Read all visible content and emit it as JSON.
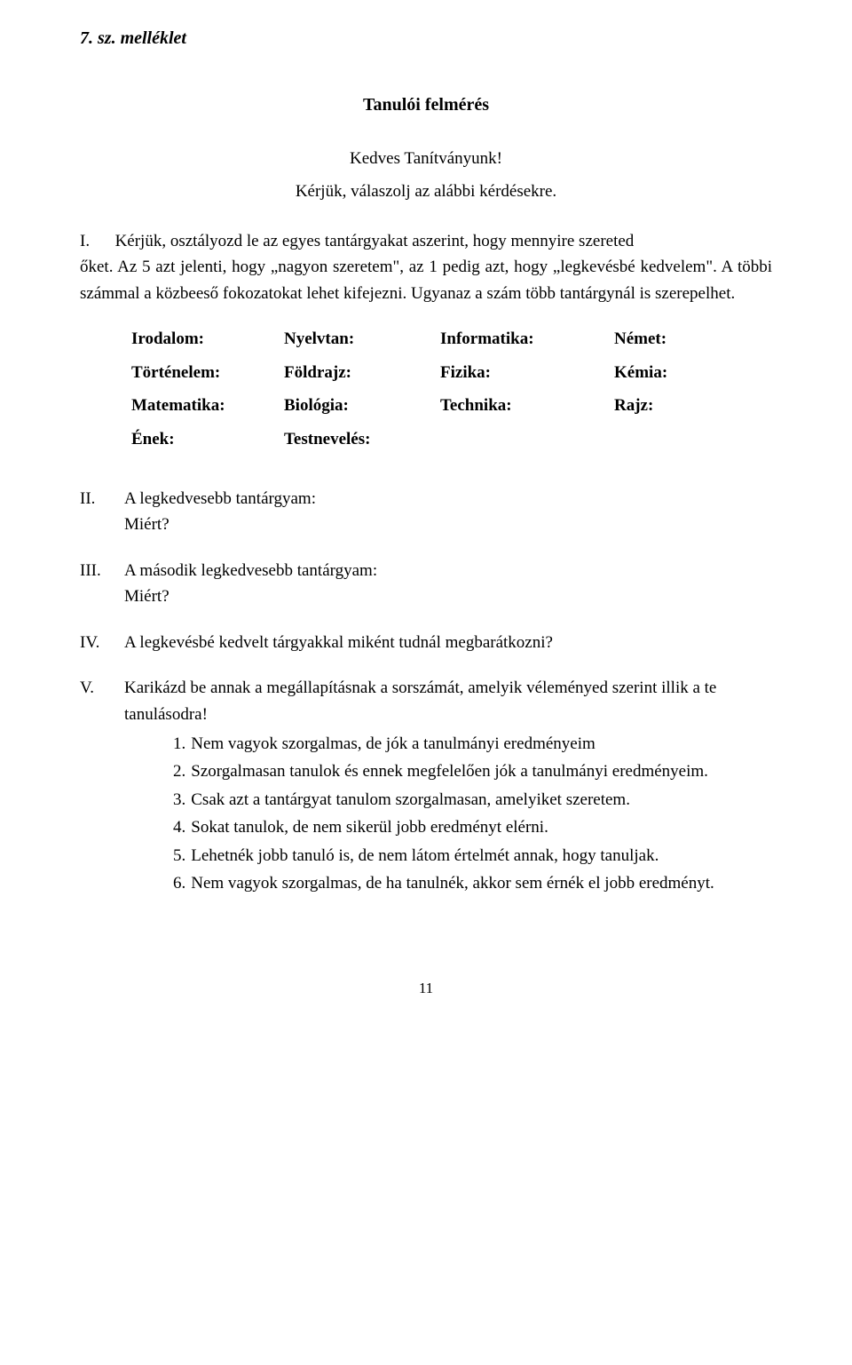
{
  "attachment_heading": "7. sz. melléklet",
  "title": "Tanulói felmérés",
  "salutation": "Kedves Tanítványunk!",
  "instruction": "Kérjük, válaszolj az alábbi kérdésekre.",
  "section1": {
    "num": "I.",
    "text_part1": "Kérjük, osztályozd le az egyes tantárgyakat aszerint, hogy mennyire szereted",
    "text_part2": "őket. Az 5 azt jelenti, hogy „nagyon szeretem\", az 1 pedig azt, hogy „legkevésbé kedvelem\". A többi számmal a közbeeső fokozatokat lehet kifejezni. Ugyanaz a szám több tantárgynál is szerepelhet."
  },
  "subjects": {
    "row1": {
      "a": "Irodalom:",
      "b": "Nyelvtan:",
      "c": "Informatika:",
      "d": "Német:"
    },
    "row2": {
      "a": "Történelem:",
      "b": "Földrajz:",
      "c": "Fizika:",
      "d": "Kémia:"
    },
    "row3": {
      "a": "Matematika:",
      "b": "Biológia:",
      "c": "Technika:",
      "d": "Rajz:"
    },
    "row4": {
      "a": "Ének:",
      "b": "Testnevelés:",
      "c": "",
      "d": ""
    }
  },
  "q2": {
    "num": "II.",
    "line1": "A legkedvesebb tantárgyam:",
    "line2": "Miért?"
  },
  "q3": {
    "num": "III.",
    "line1": "A második legkedvesebb tantárgyam:",
    "line2": "Miért?"
  },
  "q4": {
    "num": "IV.",
    "line1": "A legkevésbé kedvelt tárgyakkal miként tudnál megbarátkozni?"
  },
  "q5": {
    "num": "V.",
    "intro": "Karikázd be annak a megállapításnak a sorszámát, amelyik véleményed szerint illik a te tanulásodra!",
    "statements": [
      {
        "n": "1.",
        "t": "Nem vagyok szorgalmas, de jók a tanulmányi eredményeim"
      },
      {
        "n": "2.",
        "t": "Szorgalmasan tanulok és ennek megfelelően jók a tanulmányi eredményeim."
      },
      {
        "n": "3.",
        "t": "Csak azt a tantárgyat tanulom szorgalmasan, amelyiket szeretem."
      },
      {
        "n": "4.",
        "t": "Sokat tanulok, de nem sikerül jobb eredményt elérni."
      },
      {
        "n": "5.",
        "t": "Lehetnék jobb tanuló is, de nem látom értelmét annak, hogy tanuljak."
      },
      {
        "n": "6.",
        "t": "Nem vagyok szorgalmas, de ha tanulnék, akkor sem érnék el jobb eredményt."
      }
    ]
  },
  "page_number": "11"
}
